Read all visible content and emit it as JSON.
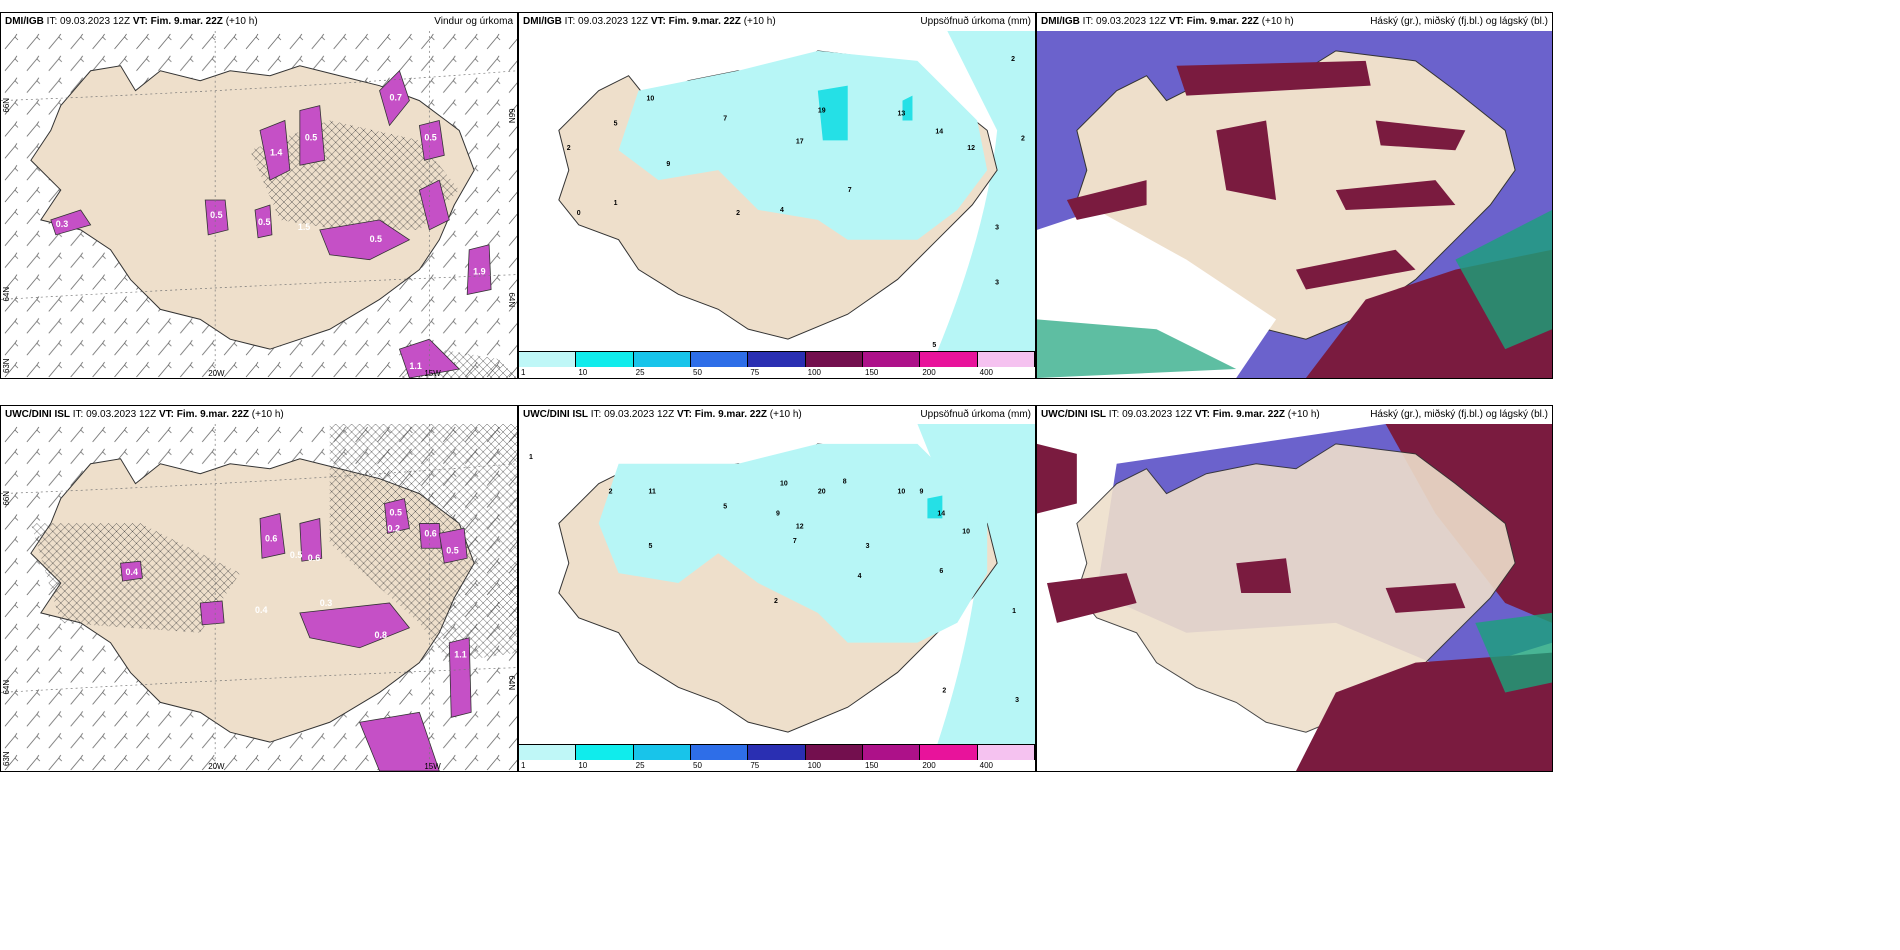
{
  "colors": {
    "land": "#eedfcb",
    "precip": "#b7f6f6",
    "precip_dark": "#25e0e6",
    "purple": "#c550c6",
    "cloud_high": "#6b62cc",
    "cloud_mid": "#7a1b3f",
    "cloud_low": "#1aa27a"
  },
  "panels": [
    {
      "model": "DMI/IGB",
      "it": "IT: 09.03.2023 12Z",
      "vt": "VT: Fim. 9.mar. 22Z",
      "lead": "(+10 h)",
      "title": "Vindur og úrkoma",
      "axis": {
        "lat1": "66N",
        "lat2": "64N",
        "lat3": "63N",
        "lon1": "20W",
        "lon2": "15W",
        "lon3": "25W"
      },
      "values": [
        "0.7",
        "1.4",
        "0.5",
        "0.3",
        "0.5",
        "1.5",
        "0.5",
        "1.9",
        "1.1",
        "0.5",
        "0.5"
      ]
    },
    {
      "model": "DMI/IGB",
      "it": "IT: 09.03.2023 12Z",
      "vt": "VT: Fim. 9.mar. 22Z",
      "lead": "(+10 h)",
      "title": "Uppsöfnuð úrkoma (mm)",
      "values": [
        "10",
        "5",
        "2",
        "7",
        "19",
        "13",
        "17",
        "14",
        "12",
        "9",
        "7",
        "4",
        "2",
        "1",
        "0",
        "2",
        "2",
        "3",
        "3",
        "5"
      ]
    },
    {
      "model": "DMI/IGB",
      "it": "IT: 09.03.2023 12Z",
      "vt": "VT: Fim. 9.mar. 22Z",
      "lead": "(+10 h)",
      "title": "Háský (gr.), miðský (fj.bl.) og lágský (bl.)"
    },
    {
      "model": "UWC/DINI ISL",
      "it": "IT: 09.03.2023 12Z",
      "vt": "VT: Fim. 9.mar. 22Z",
      "lead": "(+10 h)",
      "title": "",
      "axis": {
        "lat1": "66N",
        "lat2": "64N",
        "lat3": "63N",
        "lon1": "20W",
        "lon2": "15W",
        "lon3": "25W"
      },
      "values": [
        "0.4",
        "0.6",
        "0.5",
        "0.2",
        "0.6",
        "0.3",
        "0.5",
        "0.6",
        "0.4",
        "0.8",
        "0.5",
        "1.1"
      ]
    },
    {
      "model": "UWC/DINI ISL",
      "it": "IT: 09.03.2023 12Z",
      "vt": "VT: Fim. 9.mar. 22Z",
      "lead": "(+10 h)",
      "title": "Uppsöfnuð úrkoma (mm)",
      "values": [
        "1",
        "2",
        "11",
        "10",
        "20",
        "8",
        "10",
        "9",
        "14",
        "5",
        "7",
        "12",
        "9",
        "3",
        "2",
        "4",
        "6",
        "5",
        "10",
        "1",
        "2",
        "3"
      ]
    },
    {
      "model": "UWC/DINI ISL",
      "it": "IT: 09.03.2023 12Z",
      "vt": "VT: Fim. 9.mar. 22Z",
      "lead": "(+10 h)",
      "title": "Háský (gr.), miðský (fj.bl.) og lágský (bl.)"
    }
  ],
  "colorbar": {
    "ticks": [
      "1",
      "10",
      "25",
      "50",
      "75",
      "100",
      "150",
      "200",
      "400"
    ],
    "colors": [
      "#bff7f7",
      "#10ecec",
      "#18c4ea",
      "#2e6ee8",
      "#2a2fb2",
      "#730f4e",
      "#ad1189",
      "#e8139b",
      "#f5c2f0"
    ]
  }
}
